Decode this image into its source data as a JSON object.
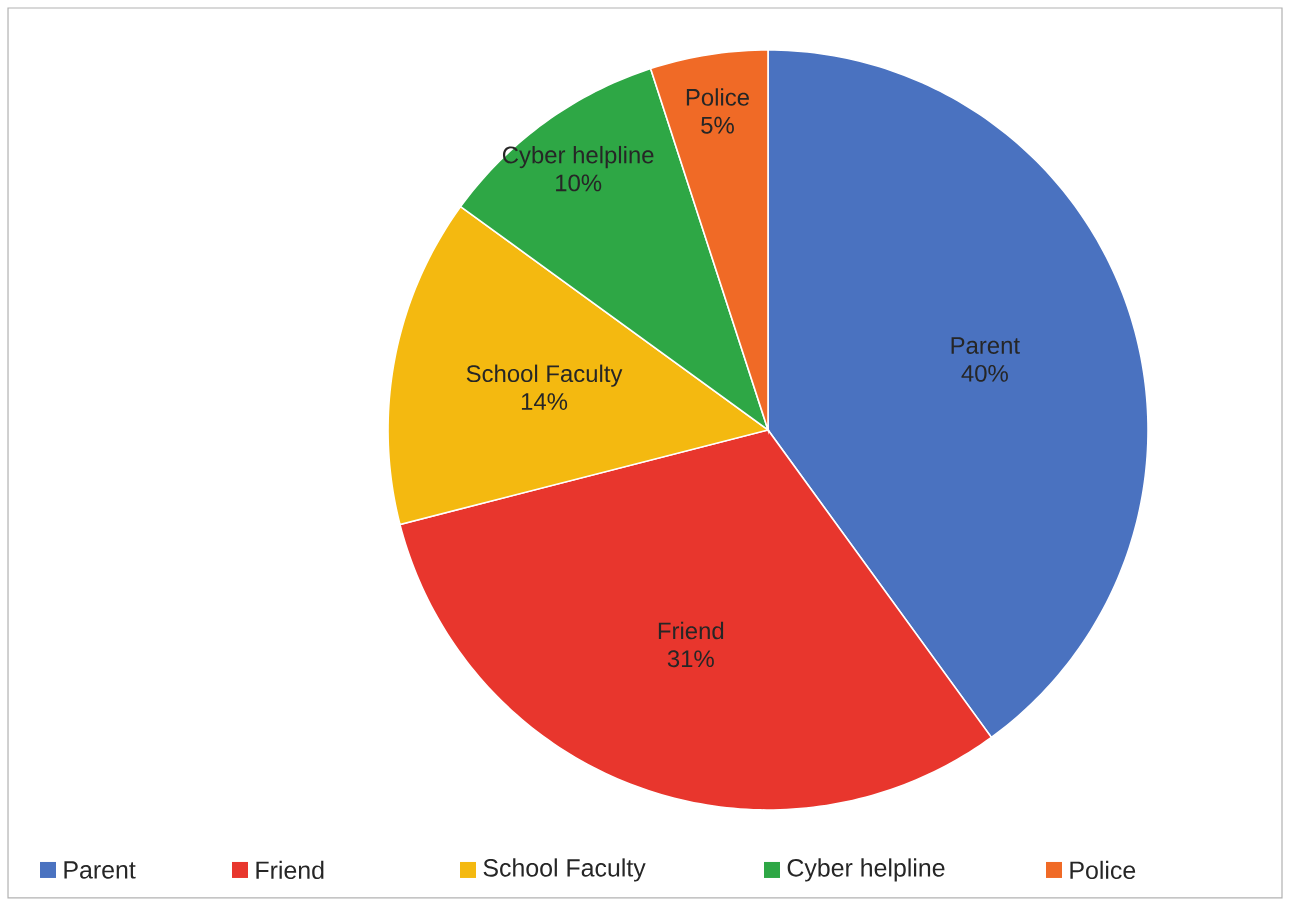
{
  "chart_data": {
    "type": "pie",
    "categories": [
      "Parent",
      "Friend",
      "School Faculty",
      "Cyber helpline",
      "Police"
    ],
    "values": [
      40,
      31,
      14,
      10,
      5
    ],
    "value_labels": [
      "40%",
      "31%",
      "14%",
      "10%",
      "5%"
    ],
    "colors": [
      "#4a72c0",
      "#e8362d",
      "#f4b910",
      "#2ea745",
      "#f06a26"
    ],
    "legend": "bottom"
  }
}
